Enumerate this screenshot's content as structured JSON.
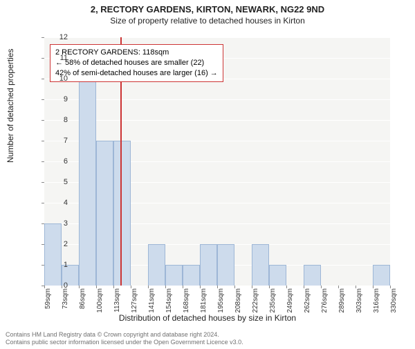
{
  "title": "2, RECTORY GARDENS, KIRTON, NEWARK, NG22 9ND",
  "subtitle": "Size of property relative to detached houses in Kirton",
  "chart": {
    "type": "histogram",
    "ylabel": "Number of detached properties",
    "xlabel": "Distribution of detached houses by size in Kirton",
    "ylim": [
      0,
      12
    ],
    "ytick_step": 1,
    "background_color": "#f5f5f3",
    "grid_color": "#ffffff",
    "bar_color": "#cddbec",
    "bar_border_color": "#9db6d6",
    "x_ticks": [
      "59sqm",
      "73sqm",
      "86sqm",
      "100sqm",
      "113sqm",
      "127sqm",
      "141sqm",
      "154sqm",
      "168sqm",
      "181sqm",
      "195sqm",
      "208sqm",
      "222sqm",
      "235sqm",
      "249sqm",
      "262sqm",
      "276sqm",
      "289sqm",
      "303sqm",
      "316sqm",
      "330sqm"
    ],
    "values": [
      3,
      1,
      10,
      7,
      7,
      0,
      2,
      1,
      1,
      2,
      2,
      0,
      2,
      1,
      0,
      1,
      0,
      0,
      0,
      1
    ],
    "reference_line": {
      "position_index": 4.4,
      "color": "#cc3333"
    },
    "annotation": {
      "border_color": "#cc3333",
      "lines": [
        "2 RECTORY GARDENS: 118sqm",
        "← 58% of detached houses are smaller (22)",
        "42% of semi-detached houses are larger (16) →"
      ]
    }
  },
  "footer": {
    "line1": "Contains HM Land Registry data © Crown copyright and database right 2024.",
    "line2": "Contains public sector information licensed under the Open Government Licence v3.0."
  }
}
